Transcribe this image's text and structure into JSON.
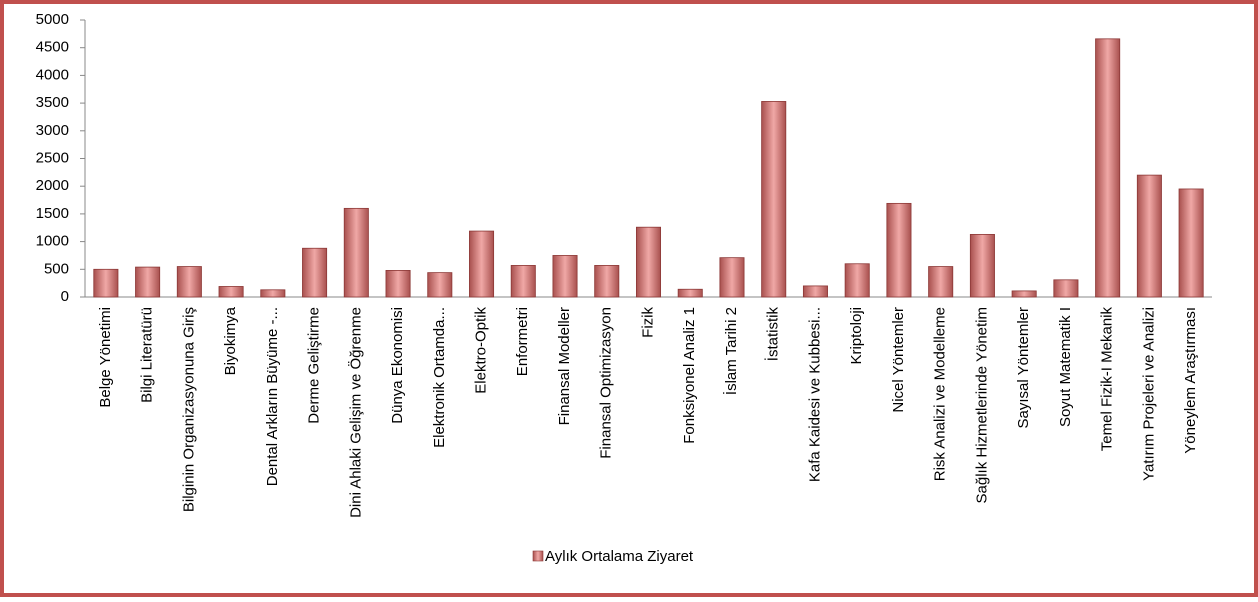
{
  "chart_data": {
    "type": "bar",
    "categories": [
      "Belge Yönetimi",
      "Bilgi Literatürü",
      "Bilginin Organizasyonuna Giriş",
      "Biyokimya",
      "Dental Arkların Büyüme -...",
      "Derme Geliştirme",
      "Dini Ahlaki Gelişim ve Öğrenme",
      "Dünya Ekonomisi",
      "Elektronik Ortamda...",
      "Elektro-Optik",
      "Enformetri",
      "Finansal Modeller",
      "Finansal Optimizasyon",
      "Fizik",
      "Fonksiyonel Analiz 1",
      "İslam Tarihi 2",
      "İstatistik",
      "Kafa Kaidesi ve Kubbesi...",
      "Kriptoloji",
      "Nicel Yöntemler",
      "Risk Analizi ve Modelleme",
      "Sağlık Hizmetlerinde Yönetim",
      "Sayısal Yöntemler",
      "Soyut Matematik I",
      "Temel Fizik-I Mekanik",
      "Yatırım Projeleri ve Analizi",
      "Yöneylem Araştırması"
    ],
    "series": [
      {
        "name": "Aylık Ortalama Ziyaret",
        "color": "#c0504d",
        "values": [
          500,
          540,
          550,
          190,
          130,
          880,
          1600,
          480,
          440,
          1190,
          570,
          750,
          570,
          1260,
          140,
          710,
          3530,
          200,
          600,
          1690,
          550,
          1130,
          110,
          310,
          4660,
          2200,
          1950
        ]
      }
    ],
    "ylim": [
      0,
      5000
    ],
    "yticks": [
      0,
      500,
      1000,
      1500,
      2000,
      2500,
      3000,
      3500,
      4000,
      4500,
      5000
    ],
    "grid": false,
    "legend": "bottom"
  }
}
